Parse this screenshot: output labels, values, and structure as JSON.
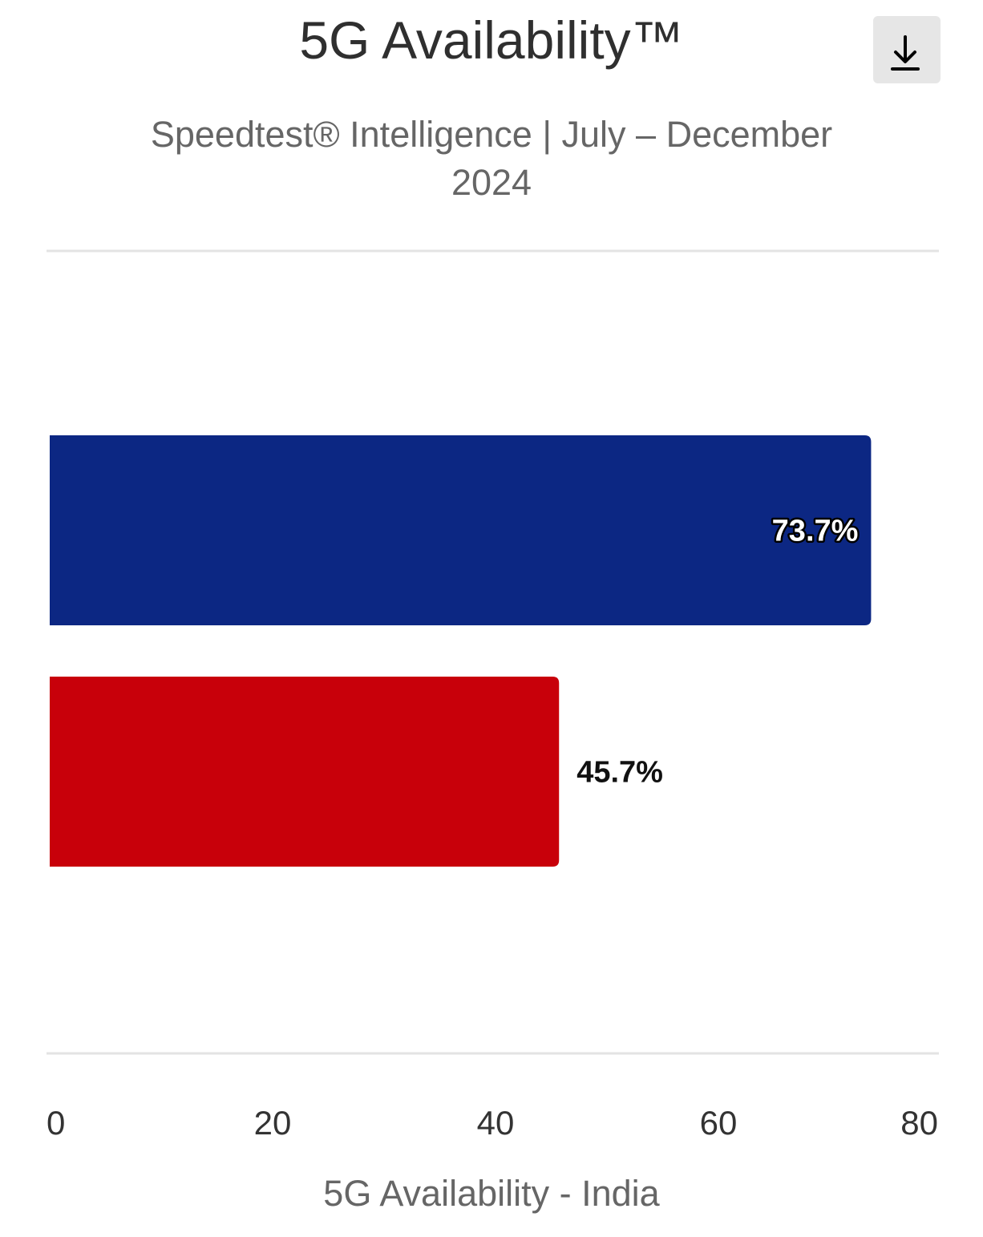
{
  "header": {
    "title": "5G Availability™",
    "subtitle": "Speedtest® Intelligence | July – December 2024",
    "download_icon": "download-icon"
  },
  "chart_data": {
    "type": "bar",
    "orientation": "horizontal",
    "title": "5G Availability™",
    "subtitle": "Speedtest® Intelligence | July – December 2024",
    "xlabel": "5G Availability - India",
    "ylabel": "",
    "xlim": [
      0,
      80
    ],
    "ticks": [
      "0",
      "20",
      "40",
      "60",
      "80"
    ],
    "grid": false,
    "legend": "none",
    "bars": [
      {
        "value": 73.7,
        "label": "73.7%",
        "color": "#0c2783",
        "label_inside": true
      },
      {
        "value": 45.7,
        "label": "45.7%",
        "color": "#c8000a",
        "label_inside": false
      }
    ]
  },
  "colors": {
    "divider": "#e3e3e3",
    "button_bg": "#e6e6e6"
  }
}
